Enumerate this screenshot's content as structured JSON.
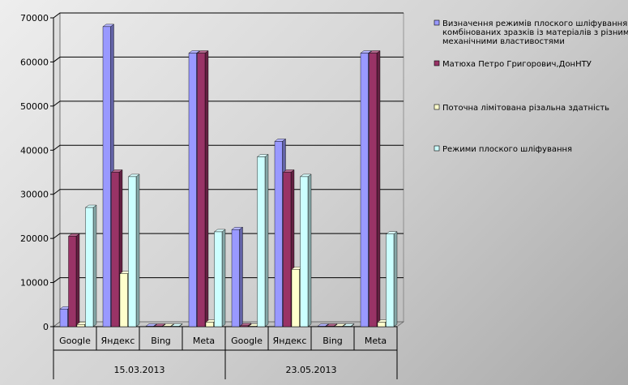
{
  "colors": {
    "s1": "#9999ff",
    "s2": "#993366",
    "s3": "#ffffcc",
    "s4": "#ccffff"
  },
  "chart_data": {
    "type": "bar",
    "categories": [
      "Google",
      "Яндекс",
      "Bing",
      "Meta",
      "Google",
      "Яндекс",
      "Bing",
      "Meta"
    ],
    "groups": [
      {
        "label": "15.03.2013",
        "categories": [
          "Google",
          "Яндекс",
          "Bing",
          "Meta"
        ]
      },
      {
        "label": "23.05.2013",
        "categories": [
          "Google",
          "Яндекс",
          "Bing",
          "Meta"
        ]
      }
    ],
    "ylim": [
      0,
      70000
    ],
    "yticks": [
      "0",
      "10000",
      "20000",
      "30000",
      "40000",
      "50000",
      "60000",
      "70000"
    ],
    "grid": true,
    "legend_position": "right",
    "legend": [
      {
        "lines": [
          "Визначення режимів плоского шліфування",
          "комбінованих зразків із матеріалів з різними",
          "механічними властивостями"
        ]
      },
      {
        "lines": [
          "Матюха Петро Григорович,ДонНТУ"
        ]
      },
      {
        "lines": [
          "Поточна лімітована різальна здатність"
        ]
      },
      {
        "lines": [
          "Режими плоского шліфування"
        ]
      }
    ],
    "series": [
      {
        "name": "Визначення режимів плоского шліфування комбінованих зразків із матеріалів з різними механічними властивостями",
        "color": "#9999ff",
        "values": [
          4000,
          68000,
          100,
          62000,
          22000,
          42000,
          100,
          62000
        ]
      },
      {
        "name": "Матюха Петро Григорович,ДонНТУ",
        "color": "#993366",
        "values": [
          20500,
          35000,
          100,
          62000,
          200,
          35000,
          100,
          62000
        ]
      },
      {
        "name": "Поточна лімітована різальна здатність",
        "color": "#ffffcc",
        "values": [
          500,
          12000,
          100,
          1000,
          100,
          13000,
          100,
          1000
        ]
      },
      {
        "name": "Режими плоского шліфування",
        "color": "#ccffff",
        "values": [
          27000,
          34000,
          100,
          21500,
          38500,
          34000,
          100,
          21000
        ]
      }
    ]
  }
}
